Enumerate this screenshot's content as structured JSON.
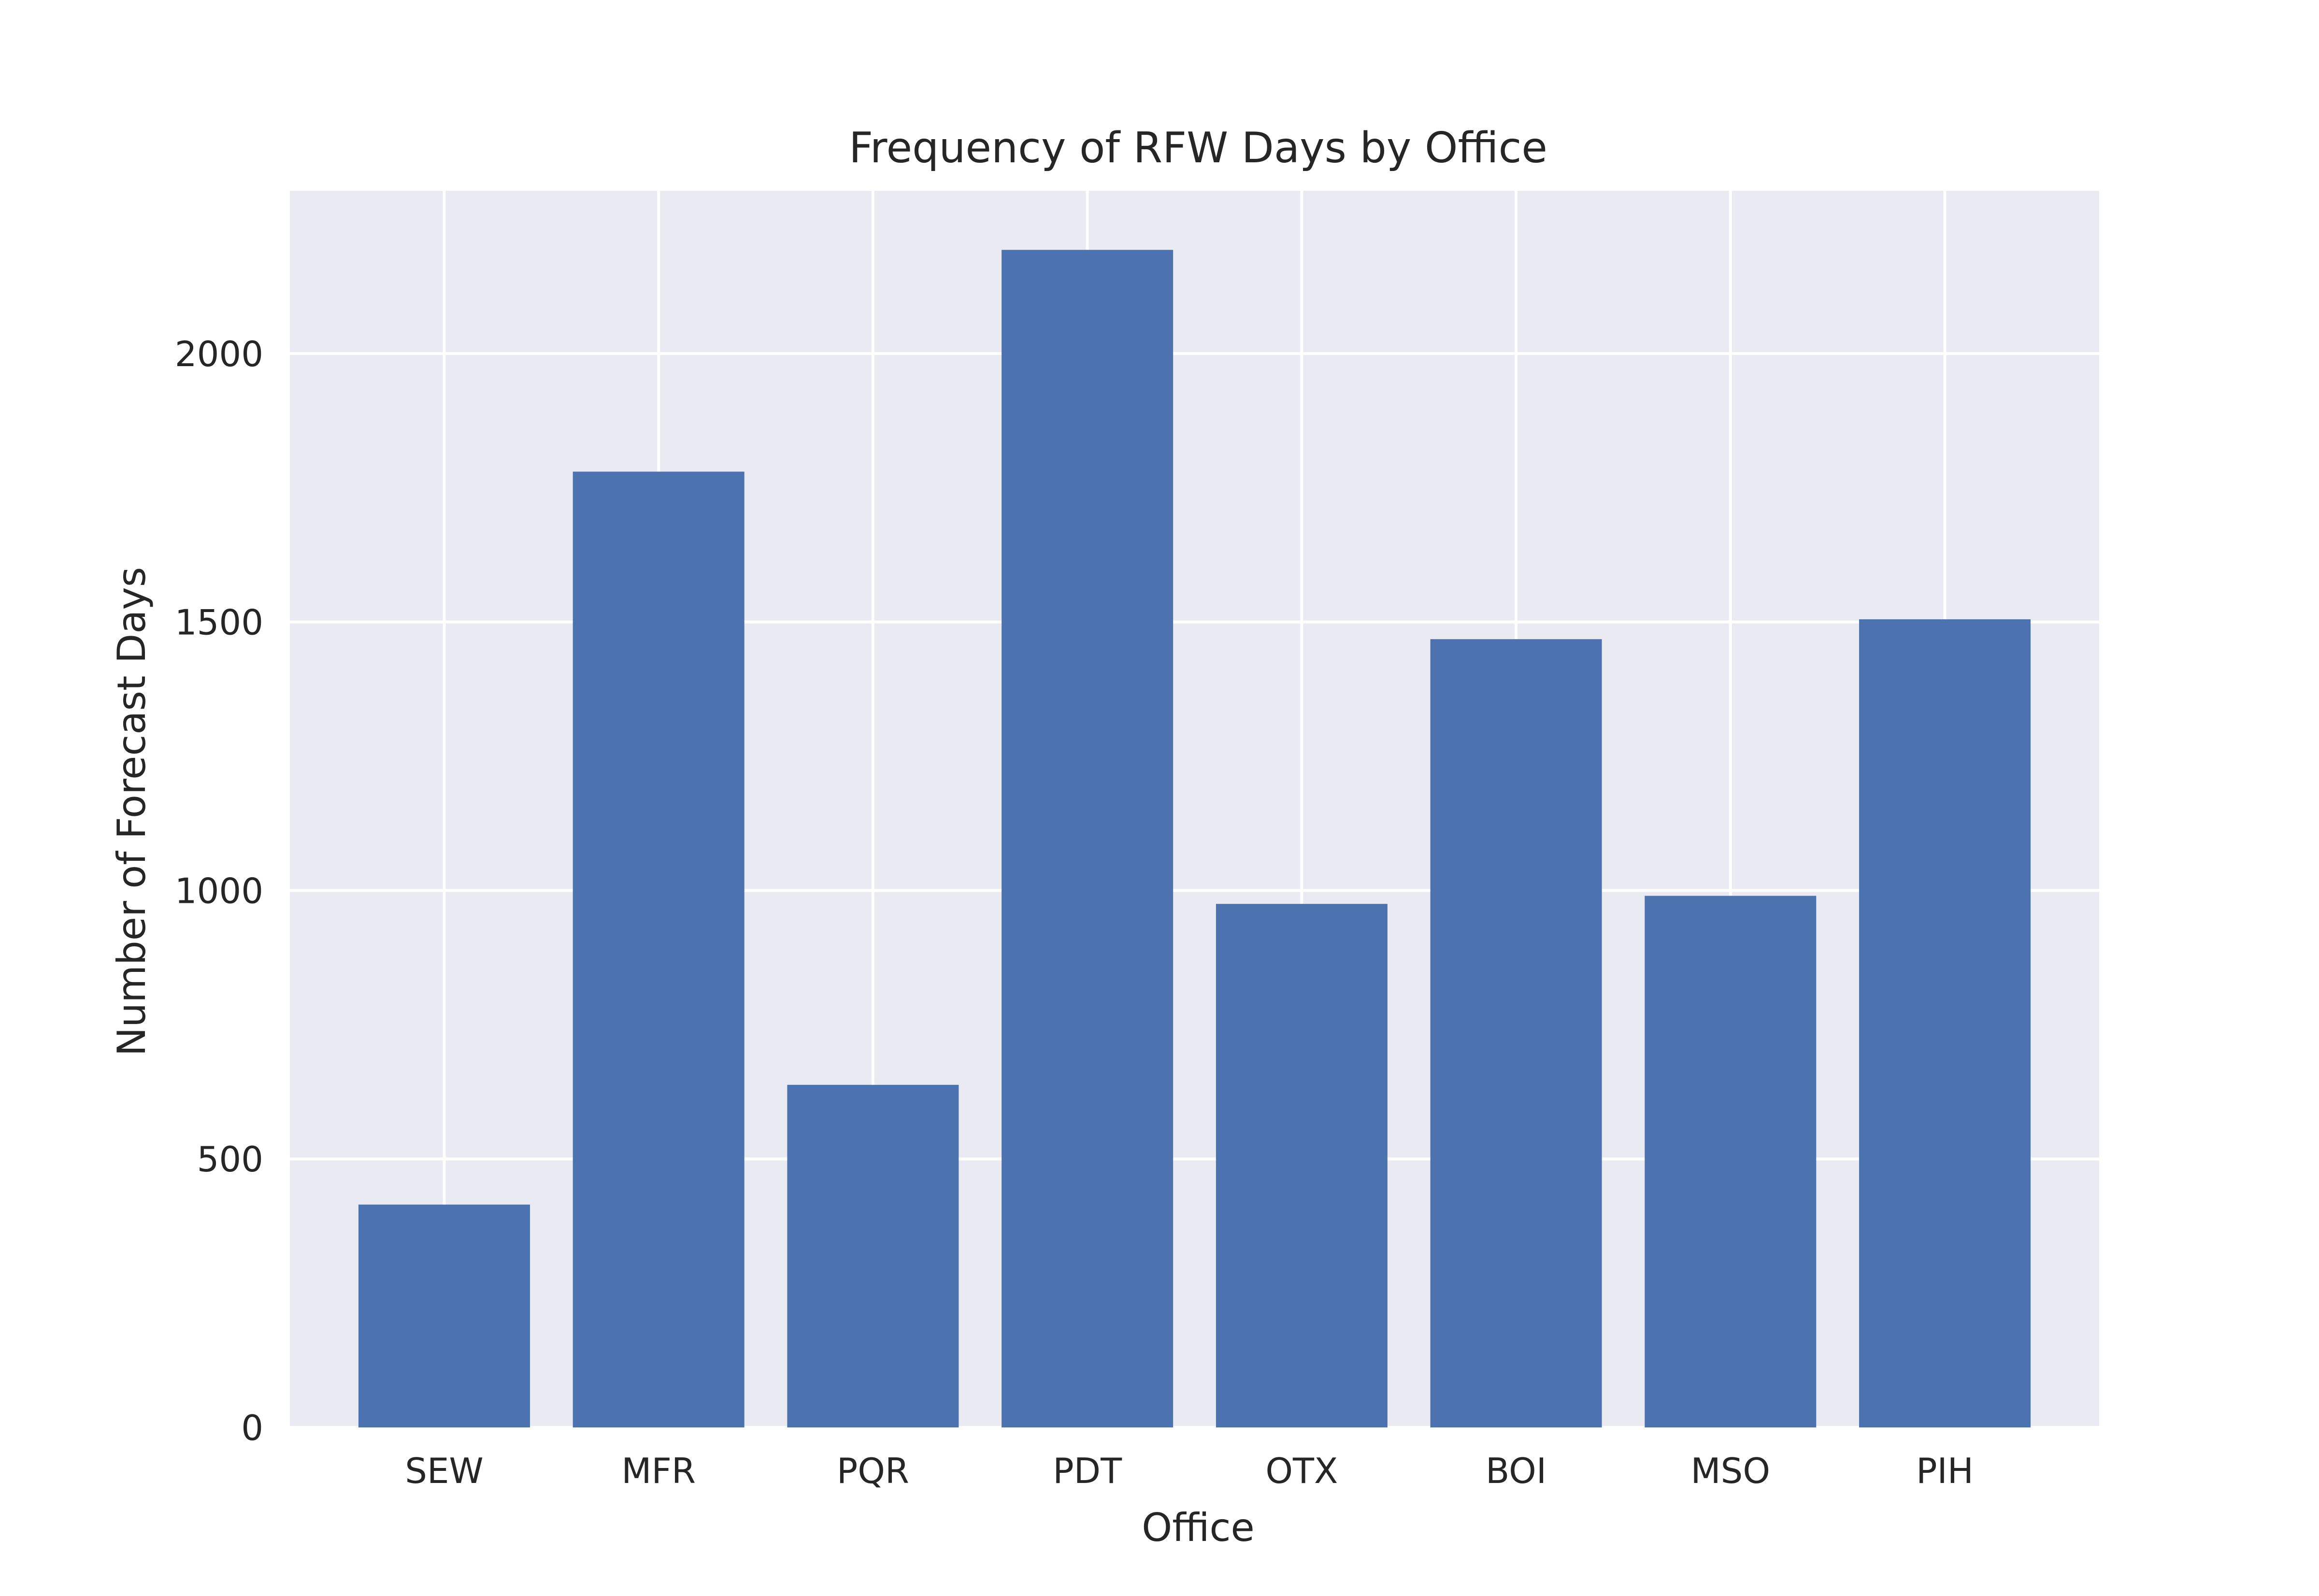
{
  "chart_data": {
    "type": "bar",
    "title": "Frequency of RFW Days by Office",
    "xlabel": "Office",
    "ylabel": "Number of Forecast Days",
    "categories": [
      "SEW",
      "MFR",
      "PQR",
      "PDT",
      "OTX",
      "BOI",
      "MSO",
      "PIH"
    ],
    "values": [
      415,
      1780,
      638,
      2193,
      975,
      1468,
      990,
      1505
    ],
    "ylim": [
      0,
      2303
    ],
    "yticks": [
      "0",
      "500",
      "1000",
      "1500",
      "2000"
    ],
    "ytick_values": [
      0,
      500,
      1000,
      1500,
      2000
    ],
    "grid": true,
    "legend": "none",
    "colors": {
      "bar": "#4c72b0",
      "plot_background": "#eaeaf2",
      "grid": "#ffffff"
    }
  }
}
